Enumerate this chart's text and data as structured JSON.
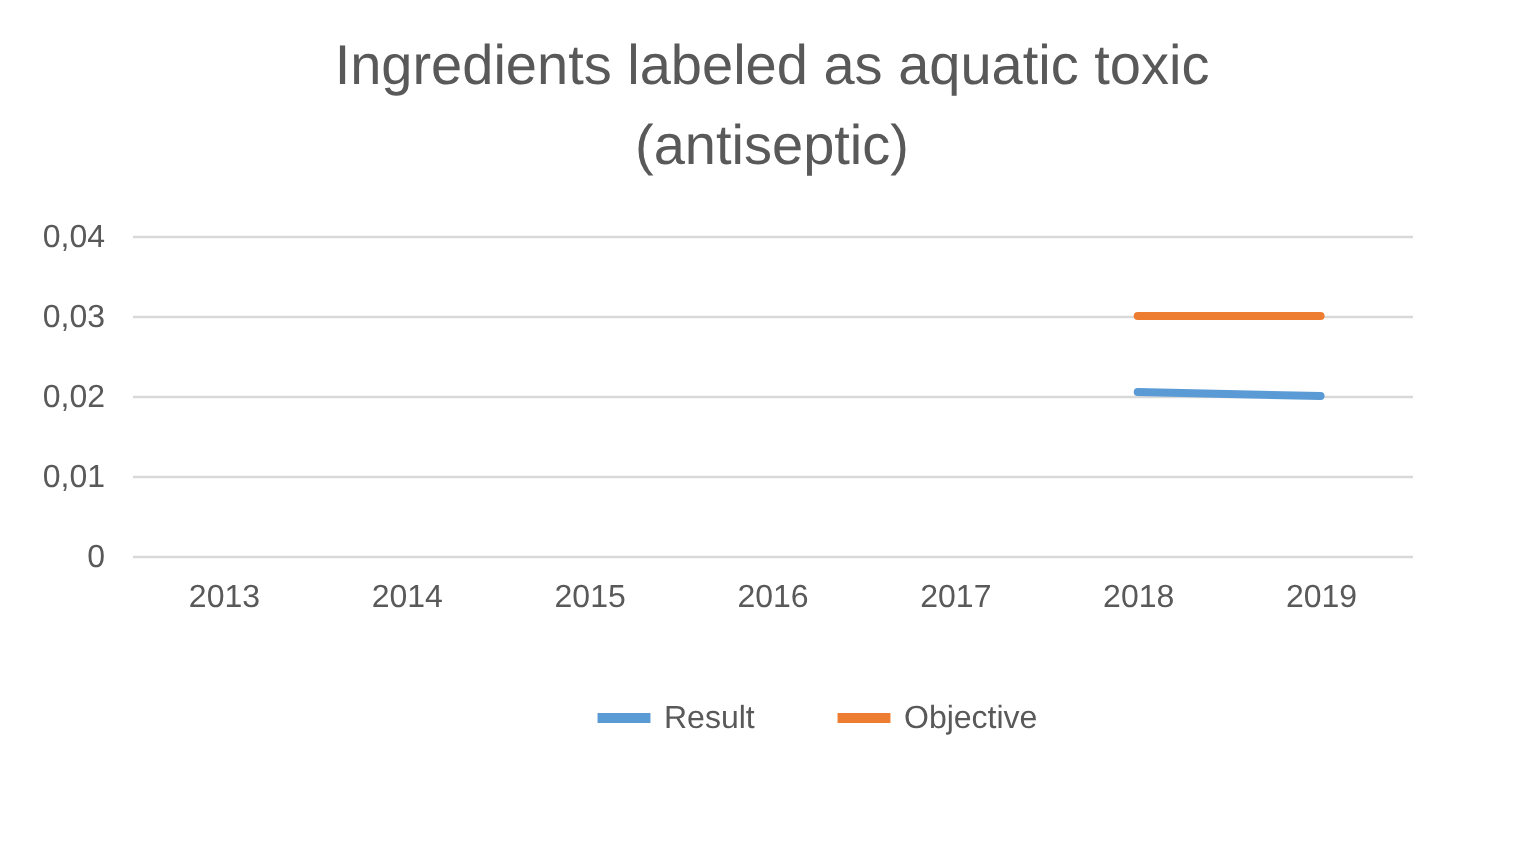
{
  "chart_data": {
    "type": "line",
    "title": "Ingredients labeled as aquatic toxic (antiseptic)",
    "categories": [
      "2013",
      "2014",
      "2015",
      "2016",
      "2017",
      "2018",
      "2019"
    ],
    "series": [
      {
        "name": "Result",
        "color": "#5b9bd5",
        "values": [
          null,
          null,
          null,
          null,
          null,
          0.0205,
          0.02
        ]
      },
      {
        "name": "Objective",
        "color": "#ed7d31",
        "values": [
          null,
          null,
          null,
          null,
          null,
          0.03,
          0.03
        ]
      }
    ],
    "ylim": [
      0,
      0.04
    ],
    "yticks": [
      0,
      {
        "value": 0.01,
        "label": "0,01"
      },
      {
        "value": 0.02,
        "label": "0,02"
      },
      {
        "value": 0.03,
        "label": "0,03"
      },
      {
        "value": 0.04,
        "label": "0,04"
      }
    ],
    "grid": "y",
    "legend": "bottom",
    "marker": "none",
    "line_style": "solid"
  }
}
